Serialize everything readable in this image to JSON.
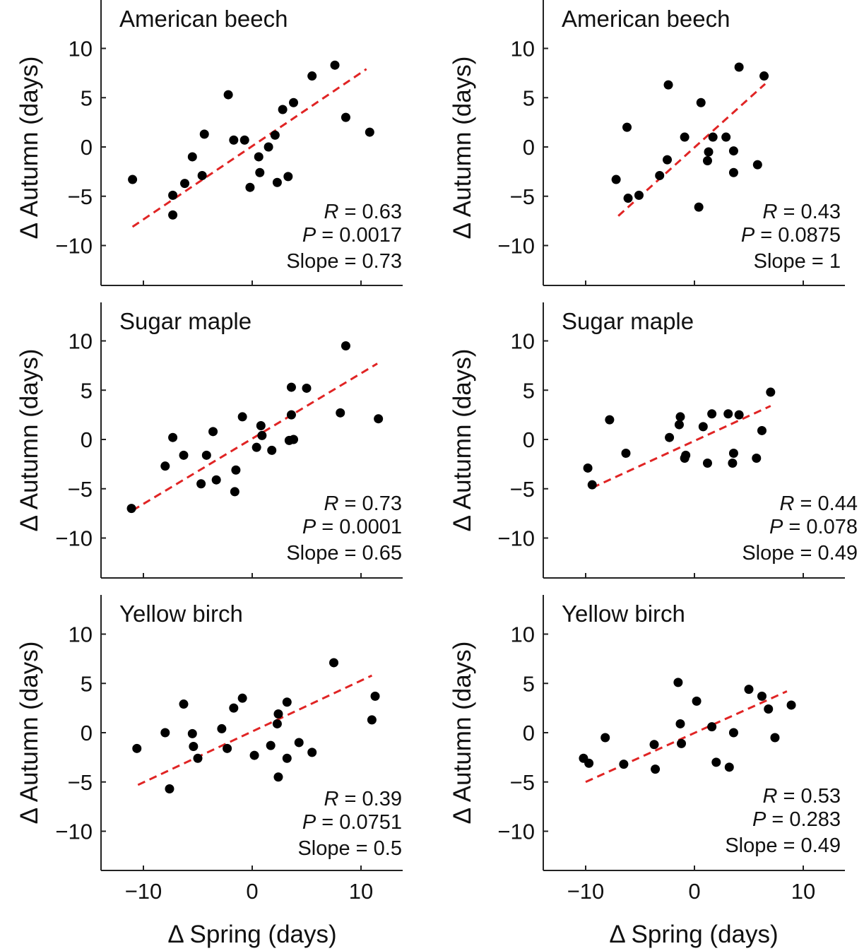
{
  "figure": {
    "ylabel": "Δ Autumn (days)",
    "xlabel": "Δ Spring (days)"
  },
  "chart_data": [
    {
      "type": "scatter",
      "title": "American beech",
      "xlim": [
        -14,
        14
      ],
      "ylim": [
        -14,
        14
      ],
      "xticks": [
        "−10",
        "0",
        "10"
      ],
      "yticks": [
        "10",
        "5",
        "0",
        "−5",
        "−10"
      ],
      "grid": false,
      "stats": {
        "r_var": "R",
        "r_value": " = 0.63",
        "p_var": "P",
        "p_value": " = 0.0017",
        "slope": "Slope = 0.73"
      },
      "fit_line": {
        "x": [
          -11,
          10.5
        ],
        "y": [
          -8.1,
          7.9
        ]
      },
      "points": [
        [
          -11,
          -3.3
        ],
        [
          -7.3,
          -4.9
        ],
        [
          -7.3,
          -6.9
        ],
        [
          -6.2,
          -3.7
        ],
        [
          -5.5,
          -1
        ],
        [
          -4.6,
          -2.9
        ],
        [
          -4.4,
          1.3
        ],
        [
          -2.2,
          5.3
        ],
        [
          -1.7,
          0.7
        ],
        [
          -0.7,
          0.7
        ],
        [
          -0.2,
          -4.1
        ],
        [
          0.6,
          -1
        ],
        [
          0.7,
          -2.6
        ],
        [
          1.5,
          0
        ],
        [
          2.1,
          1.2
        ],
        [
          2.3,
          -3.6
        ],
        [
          2.8,
          3.8
        ],
        [
          3.3,
          -3
        ],
        [
          3.8,
          4.5
        ],
        [
          5.5,
          7.2
        ],
        [
          7.6,
          8.3
        ],
        [
          8.6,
          3
        ],
        [
          10.8,
          1.5
        ]
      ]
    },
    {
      "type": "scatter",
      "title": "American beech",
      "xlim": [
        -14,
        14
      ],
      "ylim": [
        -14,
        14
      ],
      "xticks": [
        "−10",
        "0",
        "10"
      ],
      "yticks": [
        "10",
        "5",
        "0",
        "−5",
        "−10"
      ],
      "grid": false,
      "stats": {
        "r_var": "R",
        "r_value": " = 0.43",
        "p_var": "P",
        "p_value": " = 0.0875",
        "slope": "Slope = 1"
      },
      "fit_line": {
        "x": [
          -7,
          6.5
        ],
        "y": [
          -7,
          6.4
        ]
      },
      "points": [
        [
          -7.2,
          -3.3
        ],
        [
          -6.2,
          2
        ],
        [
          -6.1,
          -5.2
        ],
        [
          -5.1,
          -4.9
        ],
        [
          -3.2,
          -2.9
        ],
        [
          -2.5,
          -1.3
        ],
        [
          -2.4,
          6.3
        ],
        [
          -0.9,
          1
        ],
        [
          0.4,
          -6.1
        ],
        [
          0.6,
          4.5
        ],
        [
          1.2,
          -1.4
        ],
        [
          1.3,
          -0.5
        ],
        [
          1.7,
          1
        ],
        [
          2.9,
          1
        ],
        [
          3.6,
          -0.4
        ],
        [
          3.6,
          -2.6
        ],
        [
          4.1,
          8.1
        ],
        [
          5.8,
          -1.8
        ],
        [
          6.4,
          7.2
        ]
      ]
    },
    {
      "type": "scatter",
      "title": "Sugar maple",
      "xlim": [
        -14,
        14
      ],
      "ylim": [
        -14,
        14
      ],
      "xticks": [
        "−10",
        "0",
        "10"
      ],
      "yticks": [
        "10",
        "5",
        "0",
        "−5",
        "−10"
      ],
      "grid": false,
      "stats": {
        "r_var": "R",
        "r_value": " = 0.73",
        "p_var": "P",
        "p_value": " = 0.0001",
        "slope": "Slope = 0.65"
      },
      "fit_line": {
        "x": [
          -11,
          11.5
        ],
        "y": [
          -7.2,
          7.7
        ]
      },
      "points": [
        [
          -11.1,
          -7
        ],
        [
          -8,
          -2.7
        ],
        [
          -7.3,
          0.2
        ],
        [
          -6.3,
          -1.6
        ],
        [
          -4.7,
          -4.5
        ],
        [
          -4.2,
          -1.6
        ],
        [
          -3.6,
          0.8
        ],
        [
          -3.3,
          -4.1
        ],
        [
          -1.6,
          -5.3
        ],
        [
          -1.5,
          -3.1
        ],
        [
          -0.9,
          2.3
        ],
        [
          0.4,
          -0.8
        ],
        [
          0.8,
          1.4
        ],
        [
          0.9,
          0.4
        ],
        [
          1.8,
          -1.1
        ],
        [
          3.4,
          -0.1
        ],
        [
          3.6,
          2.5
        ],
        [
          3.6,
          5.3
        ],
        [
          3.8,
          0
        ],
        [
          5.0,
          5.2
        ],
        [
          8.1,
          2.7
        ],
        [
          8.6,
          9.5
        ],
        [
          11.6,
          2.1
        ]
      ]
    },
    {
      "type": "scatter",
      "title": "Sugar maple",
      "xlim": [
        -14,
        14
      ],
      "ylim": [
        -14,
        14
      ],
      "xticks": [
        "−10",
        "0",
        "10"
      ],
      "yticks": [
        "10",
        "5",
        "0",
        "−5",
        "−10"
      ],
      "grid": false,
      "stats": {
        "r_var": "R",
        "r_value": " = 0.44",
        "p_var": "P",
        "p_value": " = 0.078",
        "slope": "Slope = 0.49"
      },
      "fit_line": {
        "x": [
          -9.4,
          7
        ],
        "y": [
          -4.9,
          3.4
        ]
      },
      "points": [
        [
          -9.8,
          -2.9
        ],
        [
          -9.4,
          -4.6
        ],
        [
          -7.8,
          2
        ],
        [
          -6.3,
          -1.4
        ],
        [
          -2.3,
          0.2
        ],
        [
          -1.4,
          1.5
        ],
        [
          -1.3,
          2.3
        ],
        [
          -0.9,
          -1.9
        ],
        [
          -0.8,
          -1.6
        ],
        [
          0.8,
          1.3
        ],
        [
          1.2,
          -2.4
        ],
        [
          1.6,
          2.6
        ],
        [
          3.1,
          2.6
        ],
        [
          3.5,
          -2.4
        ],
        [
          3.6,
          -1.4
        ],
        [
          4.1,
          2.5
        ],
        [
          5.7,
          -1.9
        ],
        [
          6.2,
          0.9
        ],
        [
          7.0,
          4.8
        ]
      ]
    },
    {
      "type": "scatter",
      "title": "Yellow birch",
      "xlim": [
        -14,
        14
      ],
      "ylim": [
        -14,
        14
      ],
      "xticks": [
        "−10",
        "0",
        "10"
      ],
      "yticks": [
        "10",
        "5",
        "0",
        "−5",
        "−10"
      ],
      "grid": false,
      "stats": {
        "r_var": "R",
        "r_value": " = 0.39",
        "p_var": "P",
        "p_value": " = 0.0751",
        "slope": "Slope = 0.5"
      },
      "fit_line": {
        "x": [
          -10.5,
          11
        ],
        "y": [
          -5.3,
          5.8
        ]
      },
      "points": [
        [
          -10.6,
          -1.6
        ],
        [
          -8,
          0
        ],
        [
          -7.6,
          -5.7
        ],
        [
          -6.3,
          2.9
        ],
        [
          -5.5,
          -0.1
        ],
        [
          -5.4,
          -1.4
        ],
        [
          -5,
          -2.6
        ],
        [
          -2.8,
          0.4
        ],
        [
          -2.3,
          -1.6
        ],
        [
          -1.7,
          2.5
        ],
        [
          -0.9,
          3.5
        ],
        [
          0.2,
          -2.3
        ],
        [
          1.7,
          -1.3
        ],
        [
          2.3,
          0.9
        ],
        [
          2.4,
          1.9
        ],
        [
          2.4,
          -4.5
        ],
        [
          3.2,
          -2.6
        ],
        [
          3.2,
          3.1
        ],
        [
          4.3,
          -1
        ],
        [
          5.5,
          -2
        ],
        [
          7.5,
          7.1
        ],
        [
          11,
          1.3
        ],
        [
          11.3,
          3.7
        ]
      ]
    },
    {
      "type": "scatter",
      "title": "Yellow birch",
      "xlim": [
        -14,
        14
      ],
      "ylim": [
        -14,
        14
      ],
      "xticks": [
        "−10",
        "0",
        "10"
      ],
      "yticks": [
        "10",
        "5",
        "0",
        "−5",
        "−10"
      ],
      "grid": false,
      "stats": {
        "r_var": "R",
        "r_value": " = 0.53",
        "p_var": "P",
        "p_value": " = 0.283",
        "slope": "Slope = 0.49"
      },
      "fit_line": {
        "x": [
          -10,
          8.5
        ],
        "y": [
          -5,
          4.2
        ]
      },
      "points": [
        [
          -10.2,
          -2.6
        ],
        [
          -9.7,
          -3.1
        ],
        [
          -8.2,
          -0.5
        ],
        [
          -6.5,
          -3.2
        ],
        [
          -3.7,
          -1.2
        ],
        [
          -3.6,
          -3.7
        ],
        [
          -1.5,
          5.1
        ],
        [
          -1.3,
          0.9
        ],
        [
          -1.2,
          -1.1
        ],
        [
          0.2,
          3.2
        ],
        [
          1.6,
          0.6
        ],
        [
          2.0,
          -3
        ],
        [
          3.2,
          -3.5
        ],
        [
          3.6,
          0
        ],
        [
          5.0,
          4.4
        ],
        [
          6.2,
          3.7
        ],
        [
          6.8,
          2.4
        ],
        [
          7.4,
          -0.5
        ],
        [
          8.9,
          2.8
        ]
      ]
    }
  ]
}
